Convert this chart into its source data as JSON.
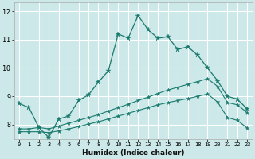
{
  "xlabel": "Humidex (Indice chaleur)",
  "bg_color": "#cce8e8",
  "grid_color": "#ffffff",
  "line_color": "#1a7a6e",
  "xlim": [
    -0.5,
    23.5
  ],
  "ylim": [
    7.5,
    12.3
  ],
  "xticks": [
    0,
    1,
    2,
    3,
    4,
    5,
    6,
    7,
    8,
    9,
    10,
    11,
    12,
    13,
    14,
    15,
    16,
    17,
    18,
    19,
    20,
    21,
    22,
    23
  ],
  "yticks": [
    8,
    9,
    10,
    11,
    12
  ],
  "line1_x": [
    0,
    1,
    2,
    3,
    4,
    5,
    6,
    7,
    8,
    9,
    10,
    11,
    12,
    13,
    14,
    15,
    16,
    17,
    18,
    19,
    20,
    21,
    22,
    23
  ],
  "line1_y": [
    8.75,
    8.6,
    7.9,
    7.55,
    8.2,
    8.3,
    8.85,
    9.05,
    9.5,
    9.9,
    11.2,
    11.05,
    11.85,
    11.35,
    11.05,
    11.1,
    10.65,
    10.75,
    10.45,
    10.0,
    9.55,
    9.0,
    8.9,
    8.55
  ],
  "line2_x": [
    0,
    1,
    2,
    3,
    4,
    5,
    6,
    7,
    8,
    9,
    10,
    11,
    12,
    13,
    14,
    15,
    16,
    17,
    18,
    19,
    20,
    21,
    22,
    23
  ],
  "line2_y": [
    7.85,
    7.85,
    7.9,
    7.85,
    7.95,
    8.05,
    8.15,
    8.25,
    8.35,
    8.48,
    8.6,
    8.72,
    8.85,
    8.97,
    9.1,
    9.22,
    9.32,
    9.42,
    9.52,
    9.62,
    9.35,
    8.78,
    8.7,
    8.42
  ],
  "line3_x": [
    0,
    1,
    2,
    3,
    4,
    5,
    6,
    7,
    8,
    9,
    10,
    11,
    12,
    13,
    14,
    15,
    16,
    17,
    18,
    19,
    20,
    21,
    22,
    23
  ],
  "line3_y": [
    7.75,
    7.75,
    7.75,
    7.72,
    7.78,
    7.85,
    7.93,
    8.02,
    8.1,
    8.2,
    8.3,
    8.4,
    8.5,
    8.6,
    8.7,
    8.78,
    8.85,
    8.92,
    9.0,
    9.08,
    8.8,
    8.25,
    8.15,
    7.88
  ]
}
